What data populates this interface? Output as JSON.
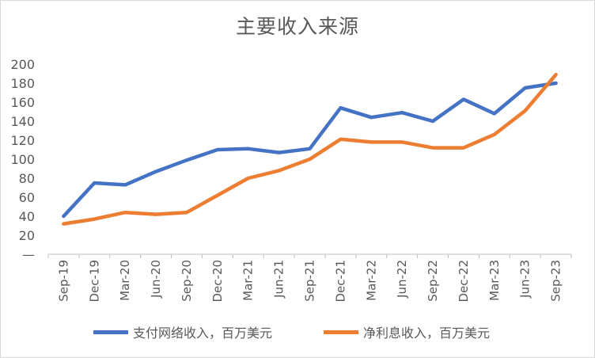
{
  "chart_data": {
    "type": "line",
    "title": "主要收入来源",
    "xlabel": "",
    "ylabel": "",
    "ylim": [
      0,
      200
    ],
    "yticks": [
      "—",
      "20",
      "40",
      "60",
      "80",
      "100",
      "120",
      "140",
      "160",
      "180",
      "200"
    ],
    "grid": false,
    "legend_position": "bottom",
    "categories": [
      "Sep-19",
      "Dec-19",
      "Mar-20",
      "Jun-20",
      "Sep-20",
      "Dec-20",
      "Mar-21",
      "Jun-21",
      "Sep-21",
      "Dec-21",
      "Mar-22",
      "Jun-22",
      "Sep-22",
      "Dec-22",
      "Mar-23",
      "Jun-23",
      "Sep-23"
    ],
    "series": [
      {
        "name": "支付网络收入，百万美元",
        "color": "#4472c4",
        "values": [
          40,
          75,
          73,
          87,
          99,
          110,
          111,
          107,
          111,
          154,
          144,
          149,
          140,
          163,
          148,
          175,
          180
        ]
      },
      {
        "name": "净利息收入，百万美元",
        "color": "#ed7d31",
        "values": [
          32,
          37,
          44,
          42,
          44,
          62,
          80,
          88,
          100,
          121,
          118,
          118,
          112,
          112,
          126,
          151,
          189
        ]
      }
    ]
  }
}
